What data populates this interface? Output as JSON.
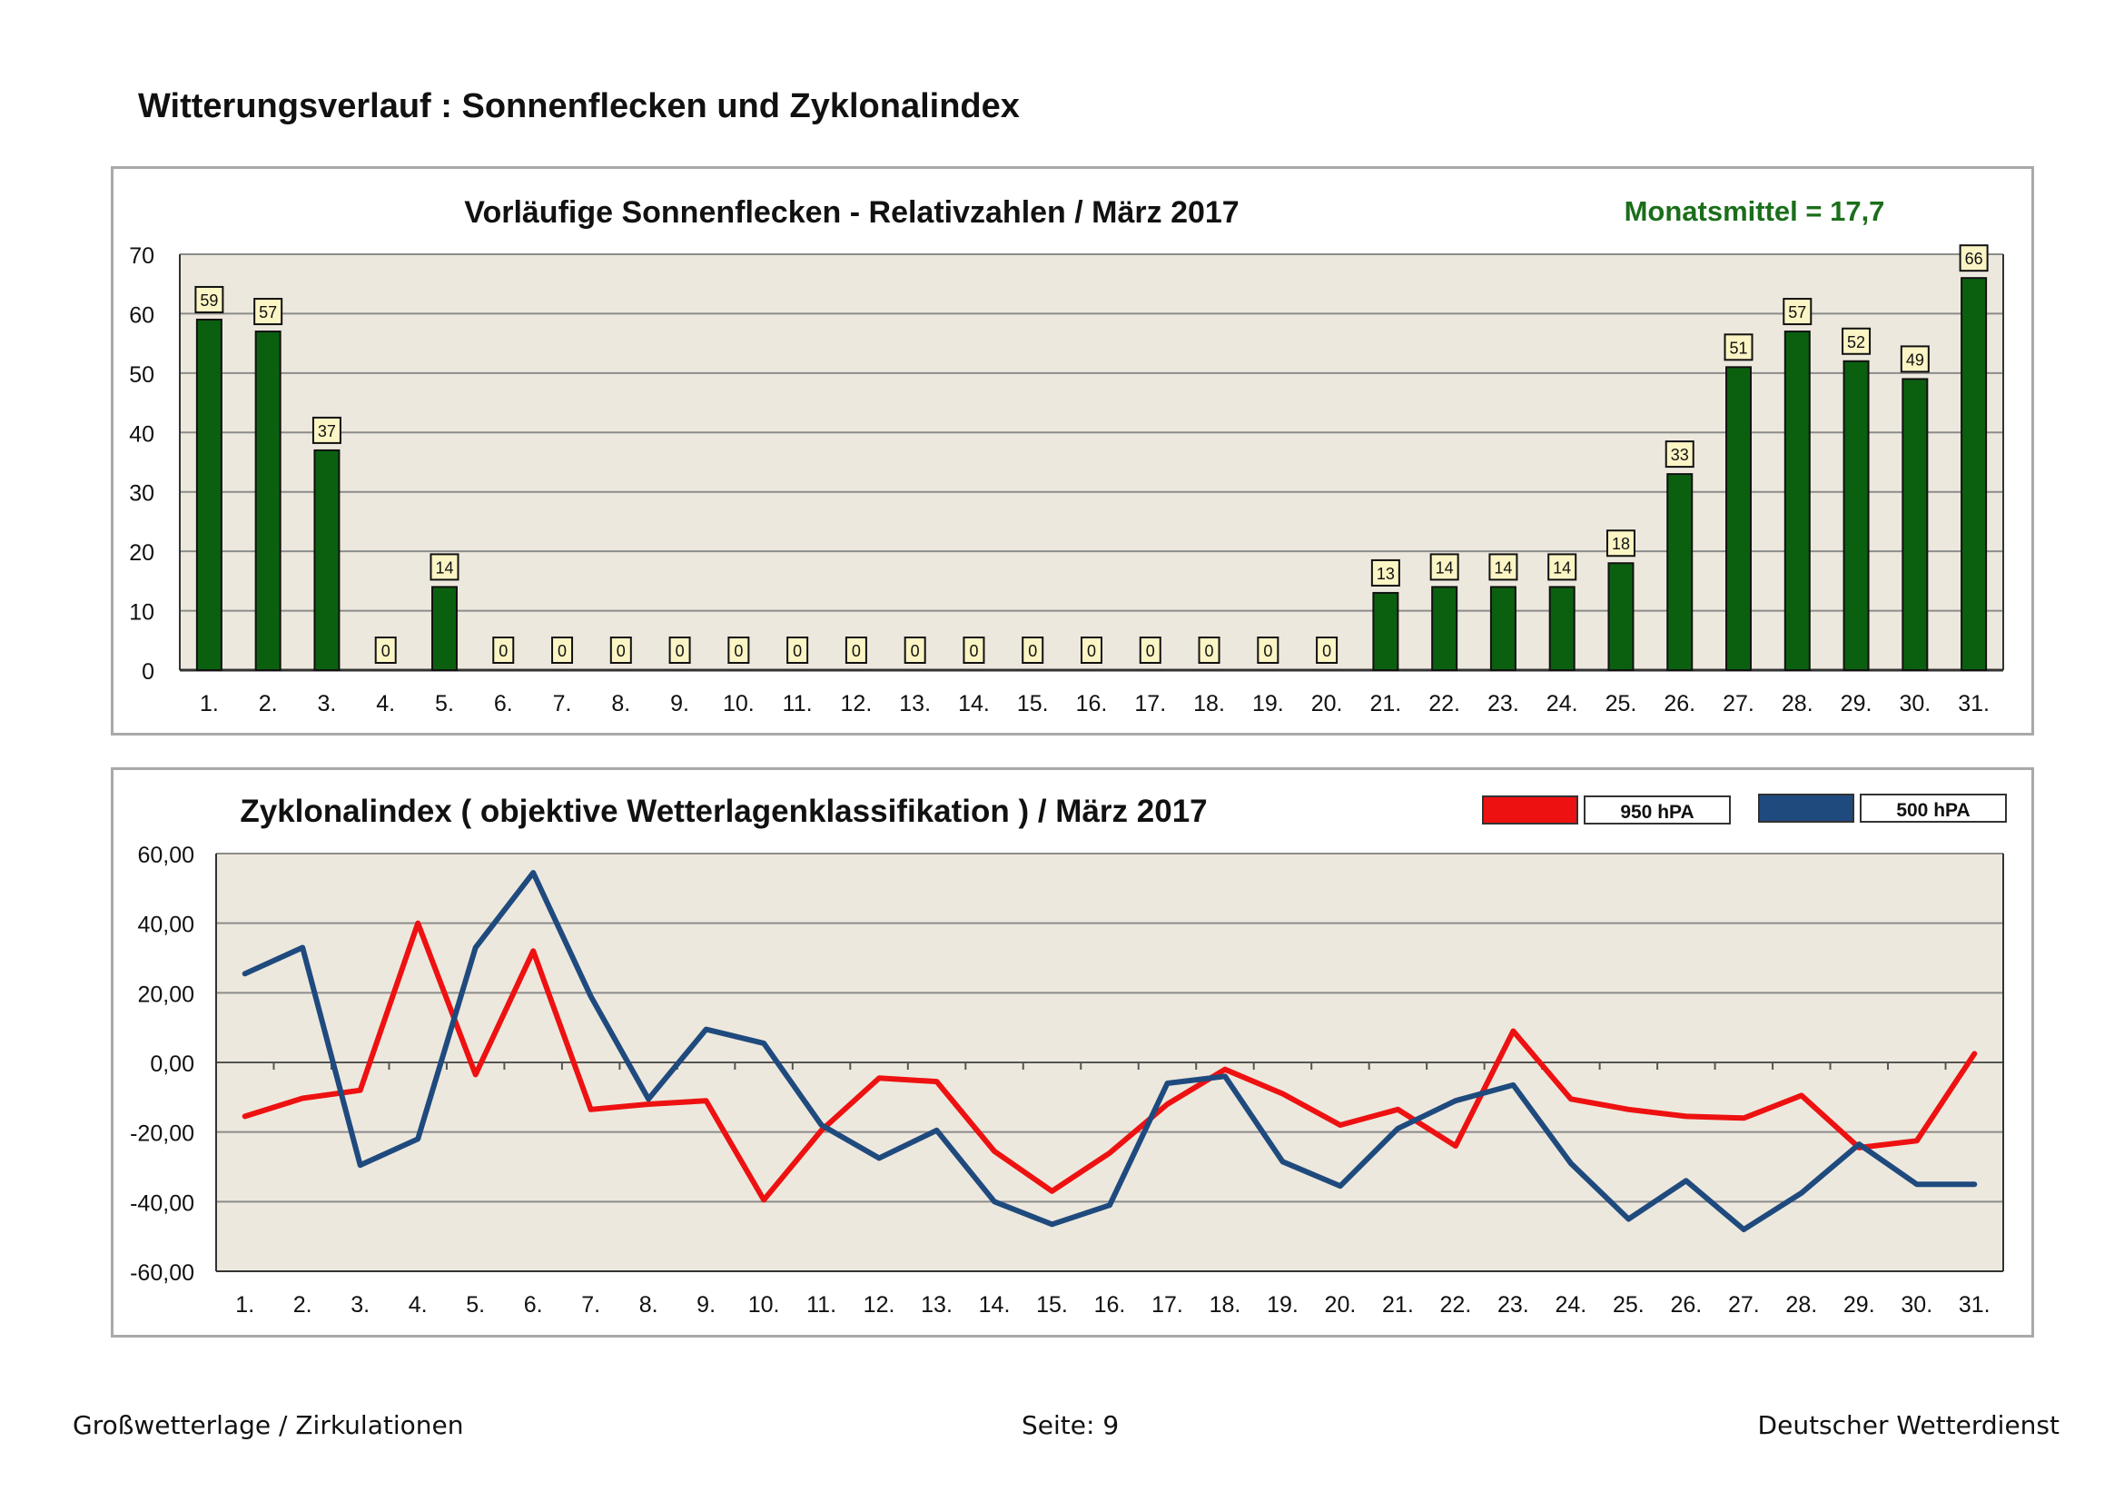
{
  "page": {
    "title": "Witterungsverlauf : Sonnenflecken und Zyklonalindex",
    "footer_left": "Großwetterlage / Zirkulationen",
    "footer_center": "Seite: 9",
    "footer_right": "Deutscher Wetterdienst"
  },
  "colors": {
    "plot_bg": "#ede8dd",
    "grid": "#8c8c8c",
    "bar_fill": "#0b6010",
    "label_fill": "#fbf4c4",
    "mean_text": "#1b6e1b",
    "series_950": "#ee1111",
    "series_500": "#1f4a7e"
  },
  "chart_data": [
    {
      "type": "bar",
      "title": "Vorläufige Sonnenflecken - Relativzahlen  /   März 2017",
      "annotation": "Monatsmittel = 17,7",
      "categories": [
        "1.",
        "2.",
        "3.",
        "4.",
        "5.",
        "6.",
        "7.",
        "8.",
        "9.",
        "10.",
        "11.",
        "12.",
        "13.",
        "14.",
        "15.",
        "16.",
        "17.",
        "18.",
        "19.",
        "20.",
        "21.",
        "22.",
        "23.",
        "24.",
        "25.",
        "26.",
        "27.",
        "28.",
        "29.",
        "30.",
        "31."
      ],
      "values": [
        59,
        57,
        37,
        0,
        14,
        0,
        0,
        0,
        0,
        0,
        0,
        0,
        0,
        0,
        0,
        0,
        0,
        0,
        0,
        0,
        13,
        14,
        14,
        14,
        18,
        33,
        51,
        57,
        52,
        49,
        66
      ],
      "ylim": [
        0,
        70
      ],
      "yticks": [
        "0",
        "10",
        "20",
        "30",
        "40",
        "50",
        "60",
        "70"
      ],
      "xlabel": "",
      "ylabel": "",
      "grid": true
    },
    {
      "type": "line",
      "title": "Zyklonalindex  ( objektive Wetterlagenklassifikation )  /  März 2017",
      "categories": [
        "1.",
        "2.",
        "3.",
        "4.",
        "5.",
        "6.",
        "7.",
        "8.",
        "9.",
        "10.",
        "11.",
        "12.",
        "13.",
        "14.",
        "15.",
        "16.",
        "17.",
        "18.",
        "19.",
        "20.",
        "21.",
        "22.",
        "23.",
        "24.",
        "25.",
        "26.",
        "27.",
        "28.",
        "29.",
        "30.",
        "31."
      ],
      "series": [
        {
          "name": "950 hPA",
          "values": [
            -15.5,
            -10.3,
            -8,
            40,
            -3.5,
            32,
            -13.5,
            -12,
            -11,
            -39.5,
            -19.5,
            -4.5,
            -5.5,
            -25.5,
            -37,
            -26,
            -12,
            -2,
            -9,
            -18,
            -13.5,
            -24,
            9,
            -10.5,
            -13.5,
            -15.5,
            -16,
            -9.5,
            -24.5,
            -22.5,
            2.5
          ]
        },
        {
          "name": "500 hPA",
          "values": [
            25.5,
            33,
            -29.5,
            -22,
            33,
            54.5,
            19,
            -10.5,
            9.5,
            5.5,
            -18,
            -27.5,
            -19.5,
            -40,
            -46.5,
            -41,
            -6,
            -4,
            -28.5,
            -35.5,
            -19,
            -11,
            -6.5,
            -29,
            -45,
            -34,
            -48,
            -37.5,
            -23.5,
            -35,
            -35
          ]
        }
      ],
      "ylim": [
        -60,
        60
      ],
      "yticks": [
        "-60,00",
        "-40,00",
        "-20,00",
        "0,00",
        "20,00",
        "40,00",
        "60,00"
      ],
      "xlabel": "",
      "ylabel": "",
      "grid": true,
      "legend": "top-right"
    }
  ]
}
